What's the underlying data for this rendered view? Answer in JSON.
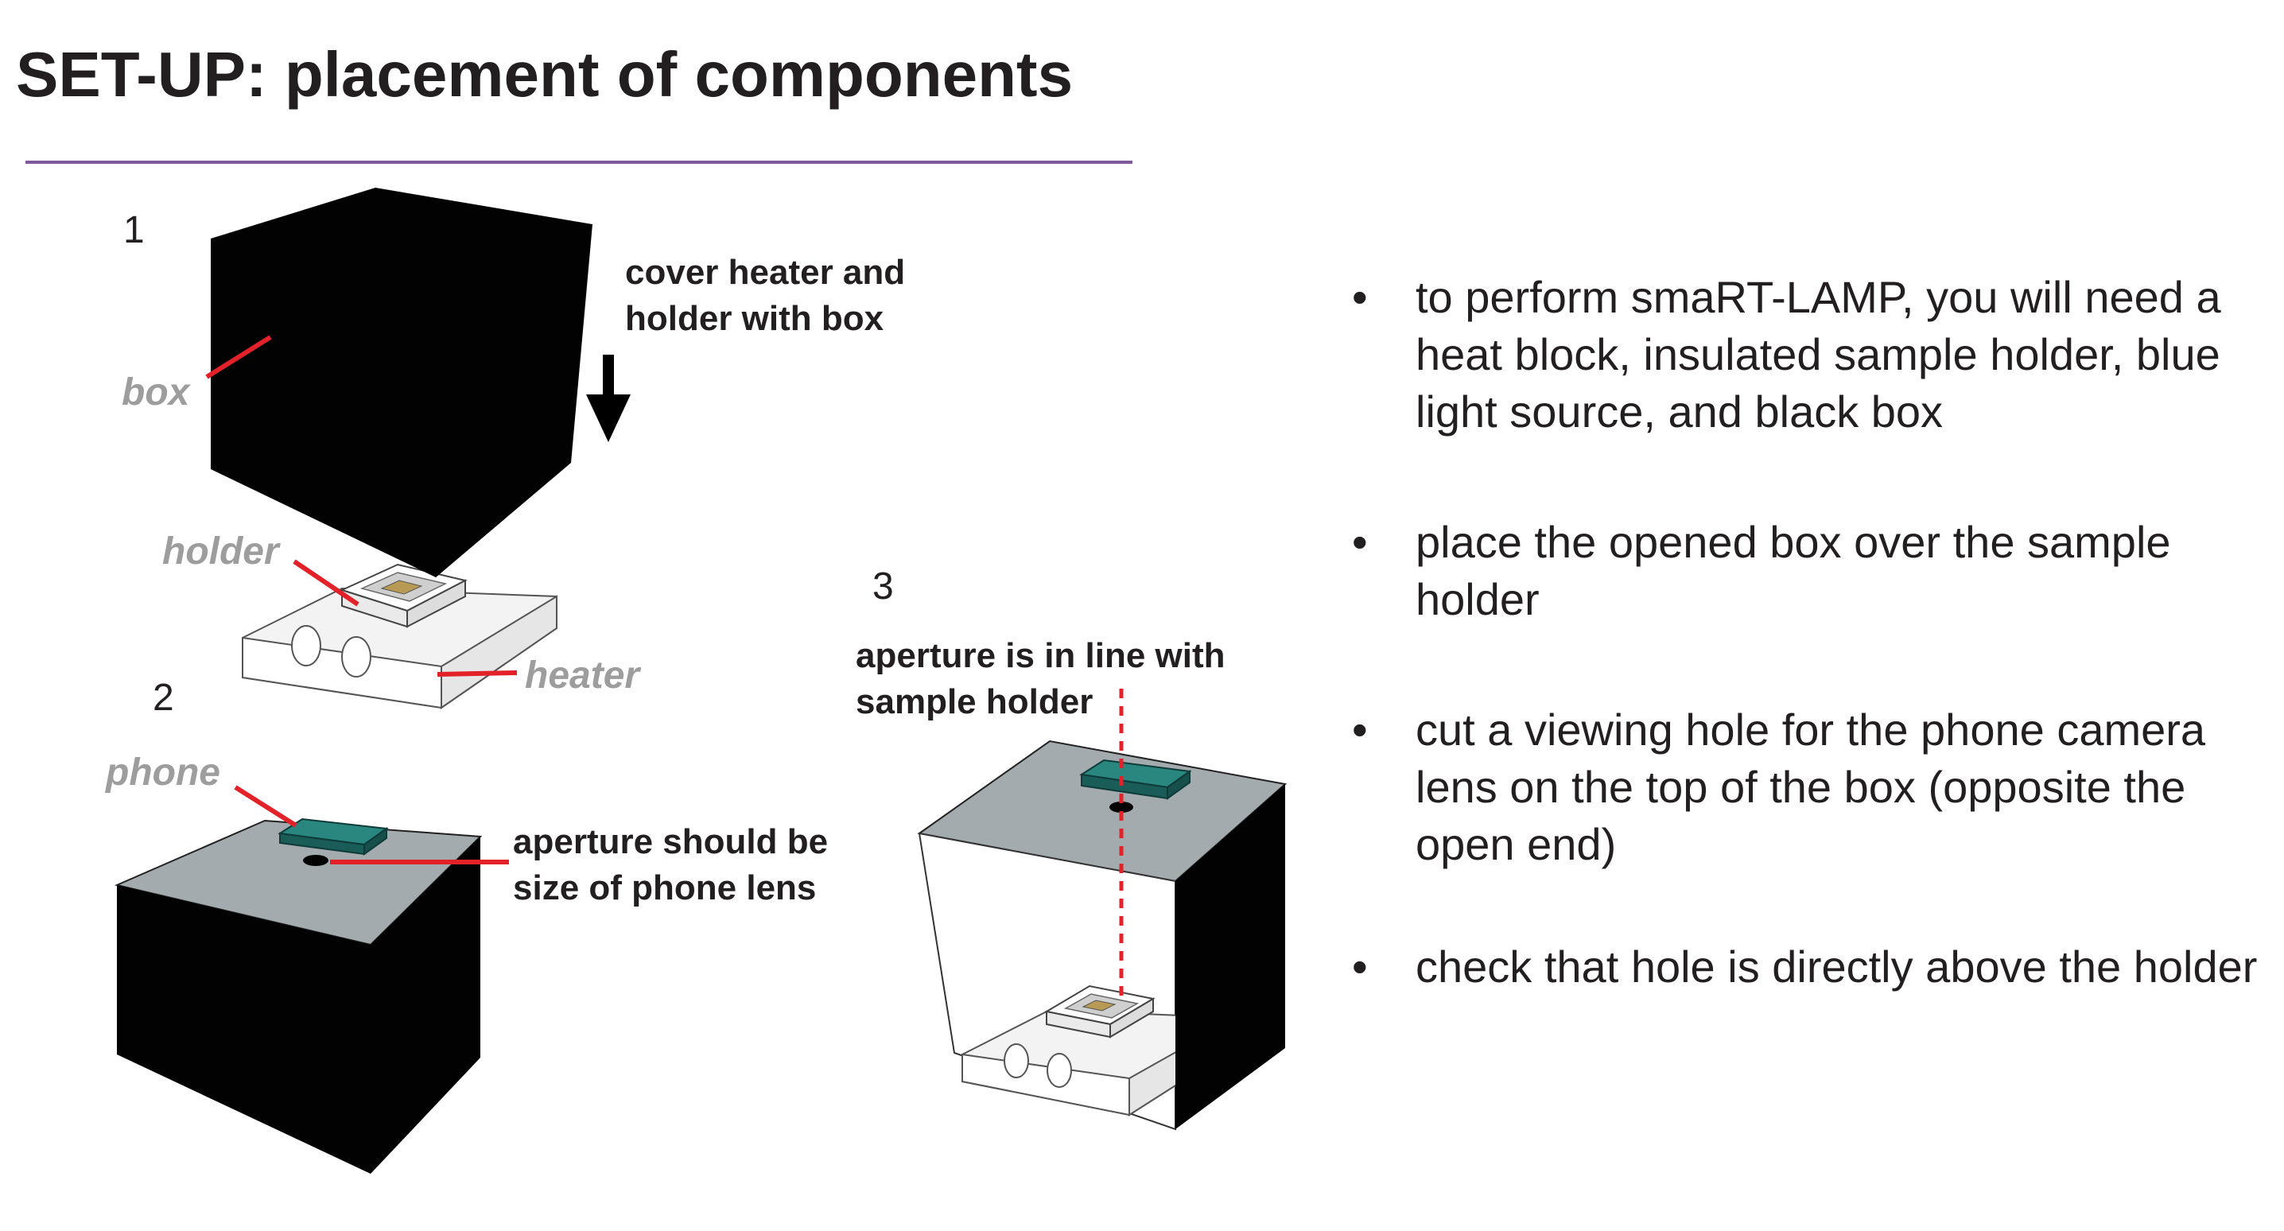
{
  "title": "SET-UP: placement of components",
  "steps": {
    "step1": "1",
    "step2": "2",
    "step3": "3"
  },
  "annotations": {
    "cover_line1": "cover heater and",
    "cover_line2": "holder with box",
    "aperture_size_line1": "aperture should be",
    "aperture_size_line2": "size of phone lens",
    "aperture_inline_line1": "aperture is in line with",
    "aperture_inline_line2": "sample holder"
  },
  "labels": {
    "box": "box",
    "holder": "holder",
    "heater": "heater",
    "phone": "phone"
  },
  "bullets": [
    "to perform smaRT-LAMP, you will need a heat block, insulated sample holder, blue light source, and black box",
    "place the opened box over the sample holder",
    "cut a viewing hole for the phone camera lens on the top of the box (opposite the open end)",
    "check that hole is directly above the holder"
  ],
  "colors": {
    "accent_rule": "#7e5a9b",
    "box": "#020202",
    "box_top": "#a3abaf",
    "phone": "#1f6b68",
    "pointer": "#e22129",
    "label_gray": "#9d9d9d",
    "heater": "#f2f2f2"
  }
}
